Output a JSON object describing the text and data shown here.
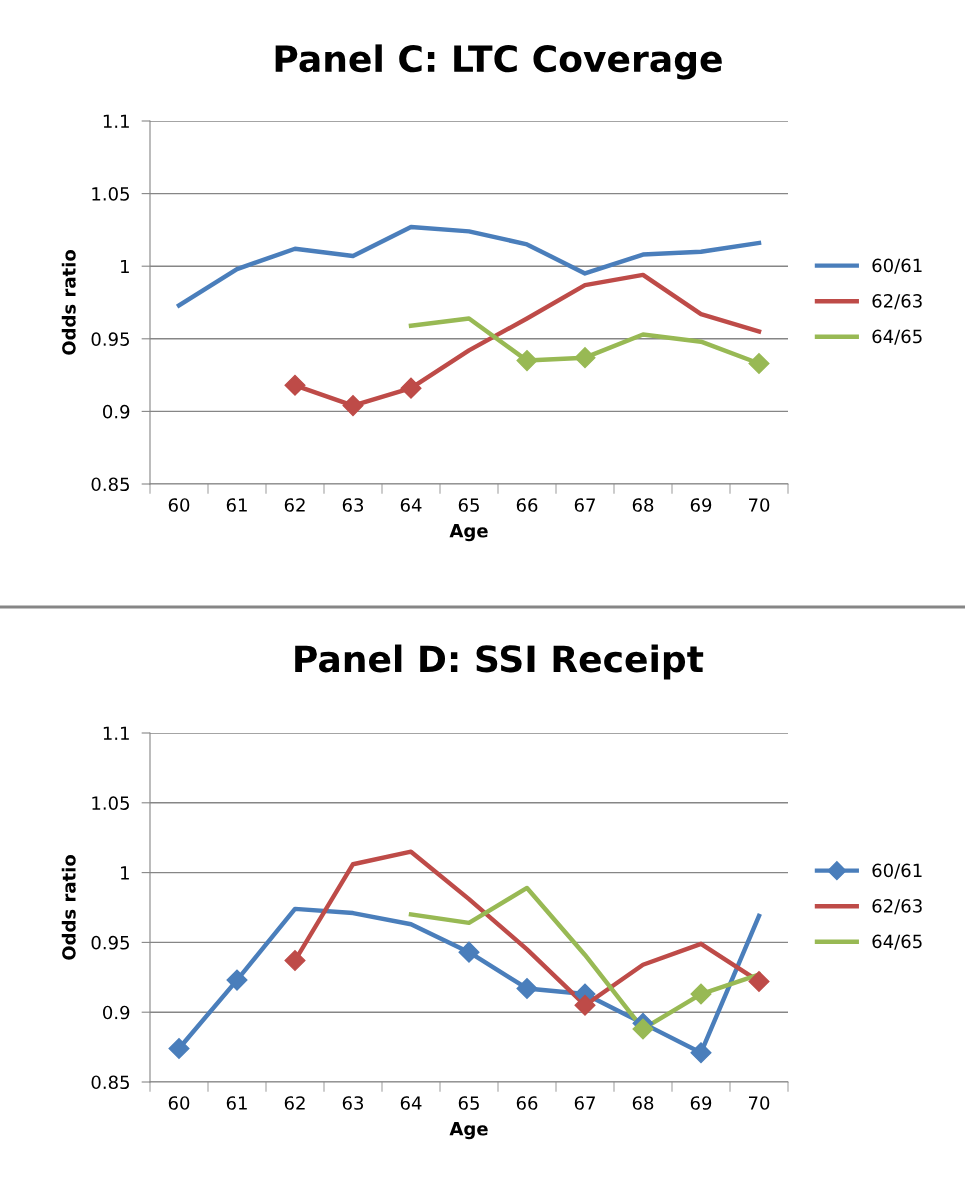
{
  "chart_data": [
    {
      "type": "line",
      "title": "Panel C: LTC Coverage",
      "xlabel": "Age",
      "ylabel": "Odds ratio",
      "categories": [
        "60",
        "61",
        "62",
        "63",
        "64",
        "65",
        "66",
        "67",
        "68",
        "69",
        "70"
      ],
      "ylim": [
        0.85,
        1.1
      ],
      "yticks": [
        {
          "value": 0.85,
          "label": "0.85"
        },
        {
          "value": 0.9,
          "label": "0.9"
        },
        {
          "value": 0.95,
          "label": "0.95"
        },
        {
          "value": 1,
          "label": "1"
        },
        {
          "value": 1.05,
          "label": "1.05"
        },
        {
          "value": 1.1,
          "label": "1.1"
        }
      ],
      "grid": "y",
      "legend": "right",
      "line_style": "solid",
      "series": [
        {
          "name": "60/61",
          "color": "#4a7ebb",
          "marker": "none",
          "values": [
            0.973,
            0.998,
            1.012,
            1.007,
            1.027,
            1.024,
            1.015,
            0.995,
            1.008,
            1.01,
            1.016
          ]
        },
        {
          "name": "62/63",
          "color": "#be4b48",
          "marker": "none",
          "values": [
            null,
            null,
            0.918,
            0.904,
            0.916,
            0.942,
            0.964,
            0.987,
            0.994,
            0.967,
            0.955
          ]
        },
        {
          "name": "64/65",
          "color": "#98b954",
          "marker": "none",
          "values": [
            null,
            null,
            null,
            null,
            0.959,
            0.964,
            0.935,
            0.937,
            0.953,
            0.948,
            0.933
          ]
        },
        {
          "type": "scatter",
          "color": "#be4b48",
          "marker": "diamond",
          "values": [
            null,
            null,
            0.918,
            0.904,
            0.916,
            null,
            null,
            null,
            null,
            null,
            null
          ]
        },
        {
          "type": "scatter",
          "color": "#98b954",
          "marker": "diamond",
          "values": [
            null,
            null,
            null,
            null,
            null,
            null,
            0.935,
            0.937,
            null,
            null,
            0.933
          ]
        }
      ]
    },
    {
      "type": "line",
      "title": "Panel D: SSI Receipt",
      "xlabel": "Age",
      "ylabel": "Odds ratio",
      "categories": [
        "60",
        "61",
        "62",
        "63",
        "64",
        "65",
        "66",
        "67",
        "68",
        "69",
        "70"
      ],
      "ylim": [
        0.85,
        1.1
      ],
      "yticks": [
        {
          "value": 0.85,
          "label": "0.85"
        },
        {
          "value": 0.9,
          "label": "0.9"
        },
        {
          "value": 0.95,
          "label": "0.95"
        },
        {
          "value": 1,
          "label": "1"
        },
        {
          "value": 1.05,
          "label": "1.05"
        },
        {
          "value": 1.1,
          "label": "1.1"
        }
      ],
      "grid": "y",
      "legend": "right",
      "line_style": "solid",
      "series": [
        {
          "color": "#4a7ebb",
          "values": [
            0.874,
            0.923,
            0.974,
            0.971,
            0.963,
            0.943,
            0.917,
            0.913,
            0.892,
            0.871,
            0.969
          ]
        },
        {
          "name": "60/61",
          "type": "scatter",
          "color": "#4a7ebb",
          "marker": "diamond",
          "values": [
            0.874,
            0.923,
            null,
            null,
            null,
            0.943,
            0.917,
            0.913,
            0.892,
            0.871,
            null
          ]
        },
        {
          "name": "62/63",
          "color": "#be4b48",
          "marker": "none",
          "values": [
            null,
            null,
            0.937,
            1.006,
            1.015,
            0.981,
            0.945,
            0.905,
            0.934,
            0.949,
            0.922
          ]
        },
        {
          "name": "64/65",
          "color": "#98b954",
          "marker": "none",
          "values": [
            null,
            null,
            null,
            null,
            0.97,
            0.964,
            0.989,
            0.941,
            0.888,
            0.913,
            0.927
          ]
        },
        {
          "type": "scatter",
          "color": "#be4b48",
          "marker": "diamond",
          "values": [
            null,
            null,
            0.937,
            null,
            null,
            null,
            null,
            0.905,
            null,
            null,
            0.922
          ]
        },
        {
          "type": "scatter",
          "color": "#98b954",
          "marker": "diamond",
          "values": [
            null,
            null,
            null,
            null,
            null,
            null,
            null,
            null,
            0.888,
            0.913,
            null
          ]
        }
      ]
    }
  ]
}
